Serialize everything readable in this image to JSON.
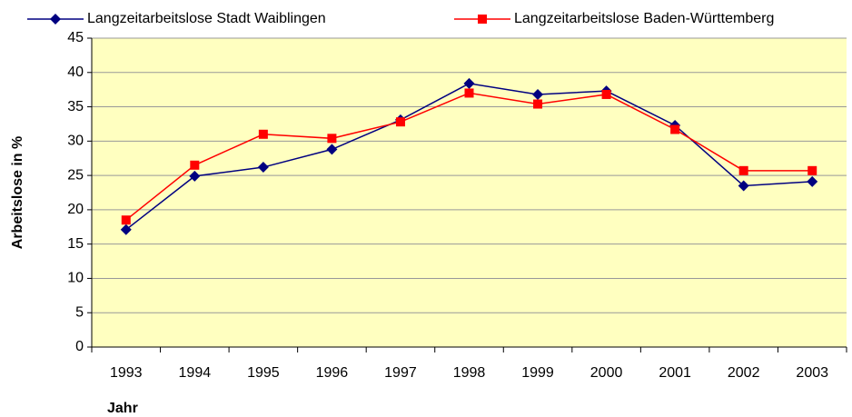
{
  "chart_data": {
    "type": "line",
    "xlabel": "Jahr",
    "ylabel": "Arbeitslose in %",
    "categories": [
      "1993",
      "1994",
      "1995",
      "1996",
      "1997",
      "1998",
      "1999",
      "2000",
      "2001",
      "2002",
      "2003"
    ],
    "series": [
      {
        "name": "Langzeitarbeitslose Stadt Waiblingen",
        "color": "#000080",
        "marker": "diamond",
        "values": [
          17.1,
          24.9,
          26.2,
          28.8,
          33.1,
          38.4,
          36.8,
          37.3,
          32.3,
          23.5,
          24.1
        ]
      },
      {
        "name": "Langzeitarbeitslose Baden-Württemberg",
        "color": "#ff0000",
        "marker": "square",
        "values": [
          18.5,
          26.5,
          31.0,
          30.4,
          32.8,
          37.0,
          35.4,
          36.8,
          31.7,
          25.7,
          25.7
        ]
      }
    ],
    "ylim": [
      0,
      45
    ],
    "yticks": [
      0,
      5,
      10,
      15,
      20,
      25,
      30,
      35,
      40,
      45
    ],
    "grid": true,
    "legend": "top",
    "plot_background": "#ffffc0"
  }
}
